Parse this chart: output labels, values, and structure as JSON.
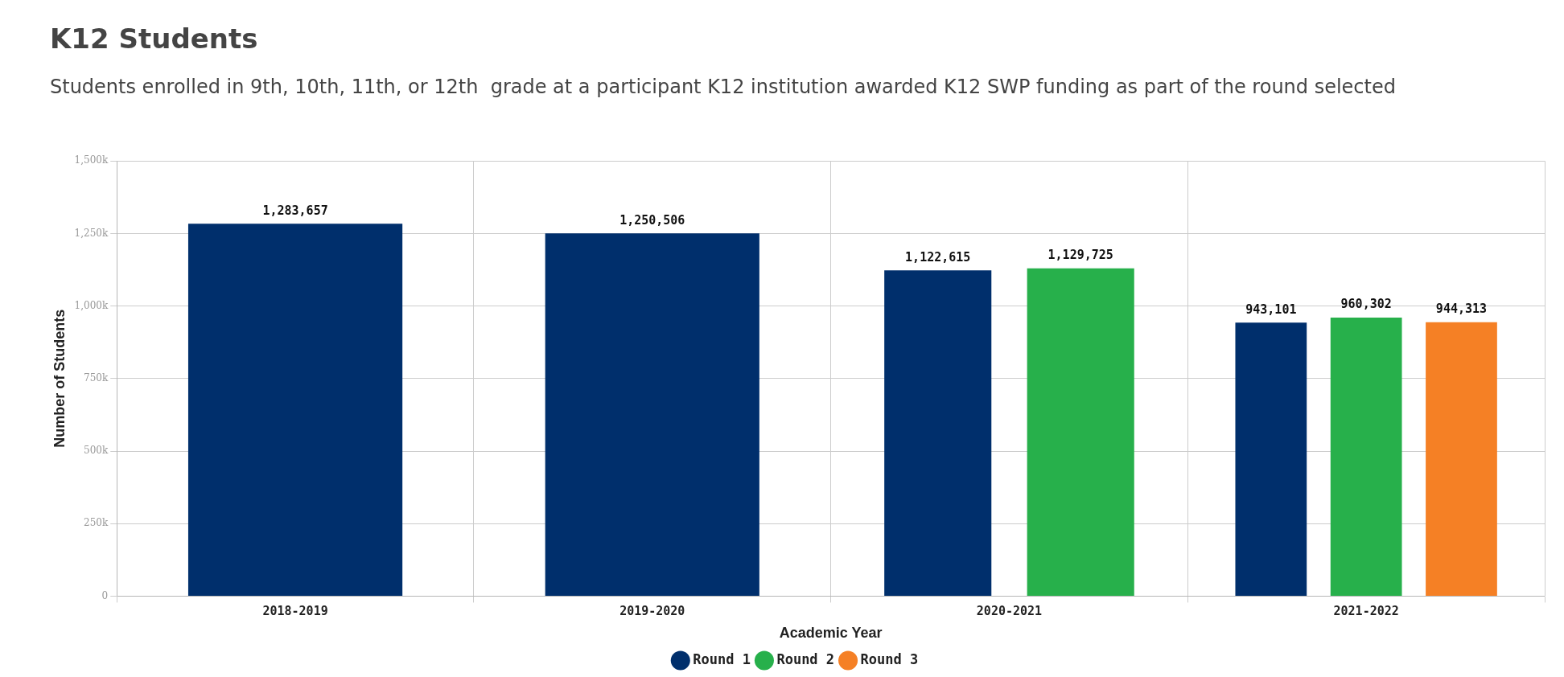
{
  "chart_data": {
    "type": "bar",
    "title": "K12 Students",
    "subtitle": "Students enrolled in 9th, 10th, 11th, or 12th  grade at a participant K12 institution awarded K12 SWP funding as part of the round selected",
    "xlabel": "Academic Year",
    "ylabel": "Number of Students",
    "categories": [
      "2018-2019",
      "2019-2020",
      "2020-2021",
      "2021-2022"
    ],
    "series": [
      {
        "name": "Round 1",
        "color": "#002f6c",
        "values": [
          1283657,
          1250506,
          1122615,
          943101
        ],
        "value_labels": [
          "1,283,657",
          "1,250,506",
          "1,122,615",
          "943,101"
        ]
      },
      {
        "name": "Round 2",
        "color": "#27b04b",
        "values": [
          null,
          null,
          1129725,
          960302
        ],
        "value_labels": [
          null,
          null,
          "1,129,725",
          "960,302"
        ]
      },
      {
        "name": "Round 3",
        "color": "#f58025",
        "values": [
          null,
          null,
          null,
          944313
        ],
        "value_labels": [
          null,
          null,
          null,
          "944,313"
        ]
      }
    ],
    "ylim": [
      0,
      1500000
    ],
    "yticks": [
      {
        "value": 0,
        "label": "0"
      },
      {
        "value": 250000,
        "label": "250k"
      },
      {
        "value": 500000,
        "label": "500k"
      },
      {
        "value": 750000,
        "label": "750k"
      },
      {
        "value": 1000000,
        "label": "1,000k"
      },
      {
        "value": 1250000,
        "label": "1,250k"
      },
      {
        "value": 1500000,
        "label": "1,500k"
      }
    ],
    "grid": true,
    "legend": "bottom"
  }
}
